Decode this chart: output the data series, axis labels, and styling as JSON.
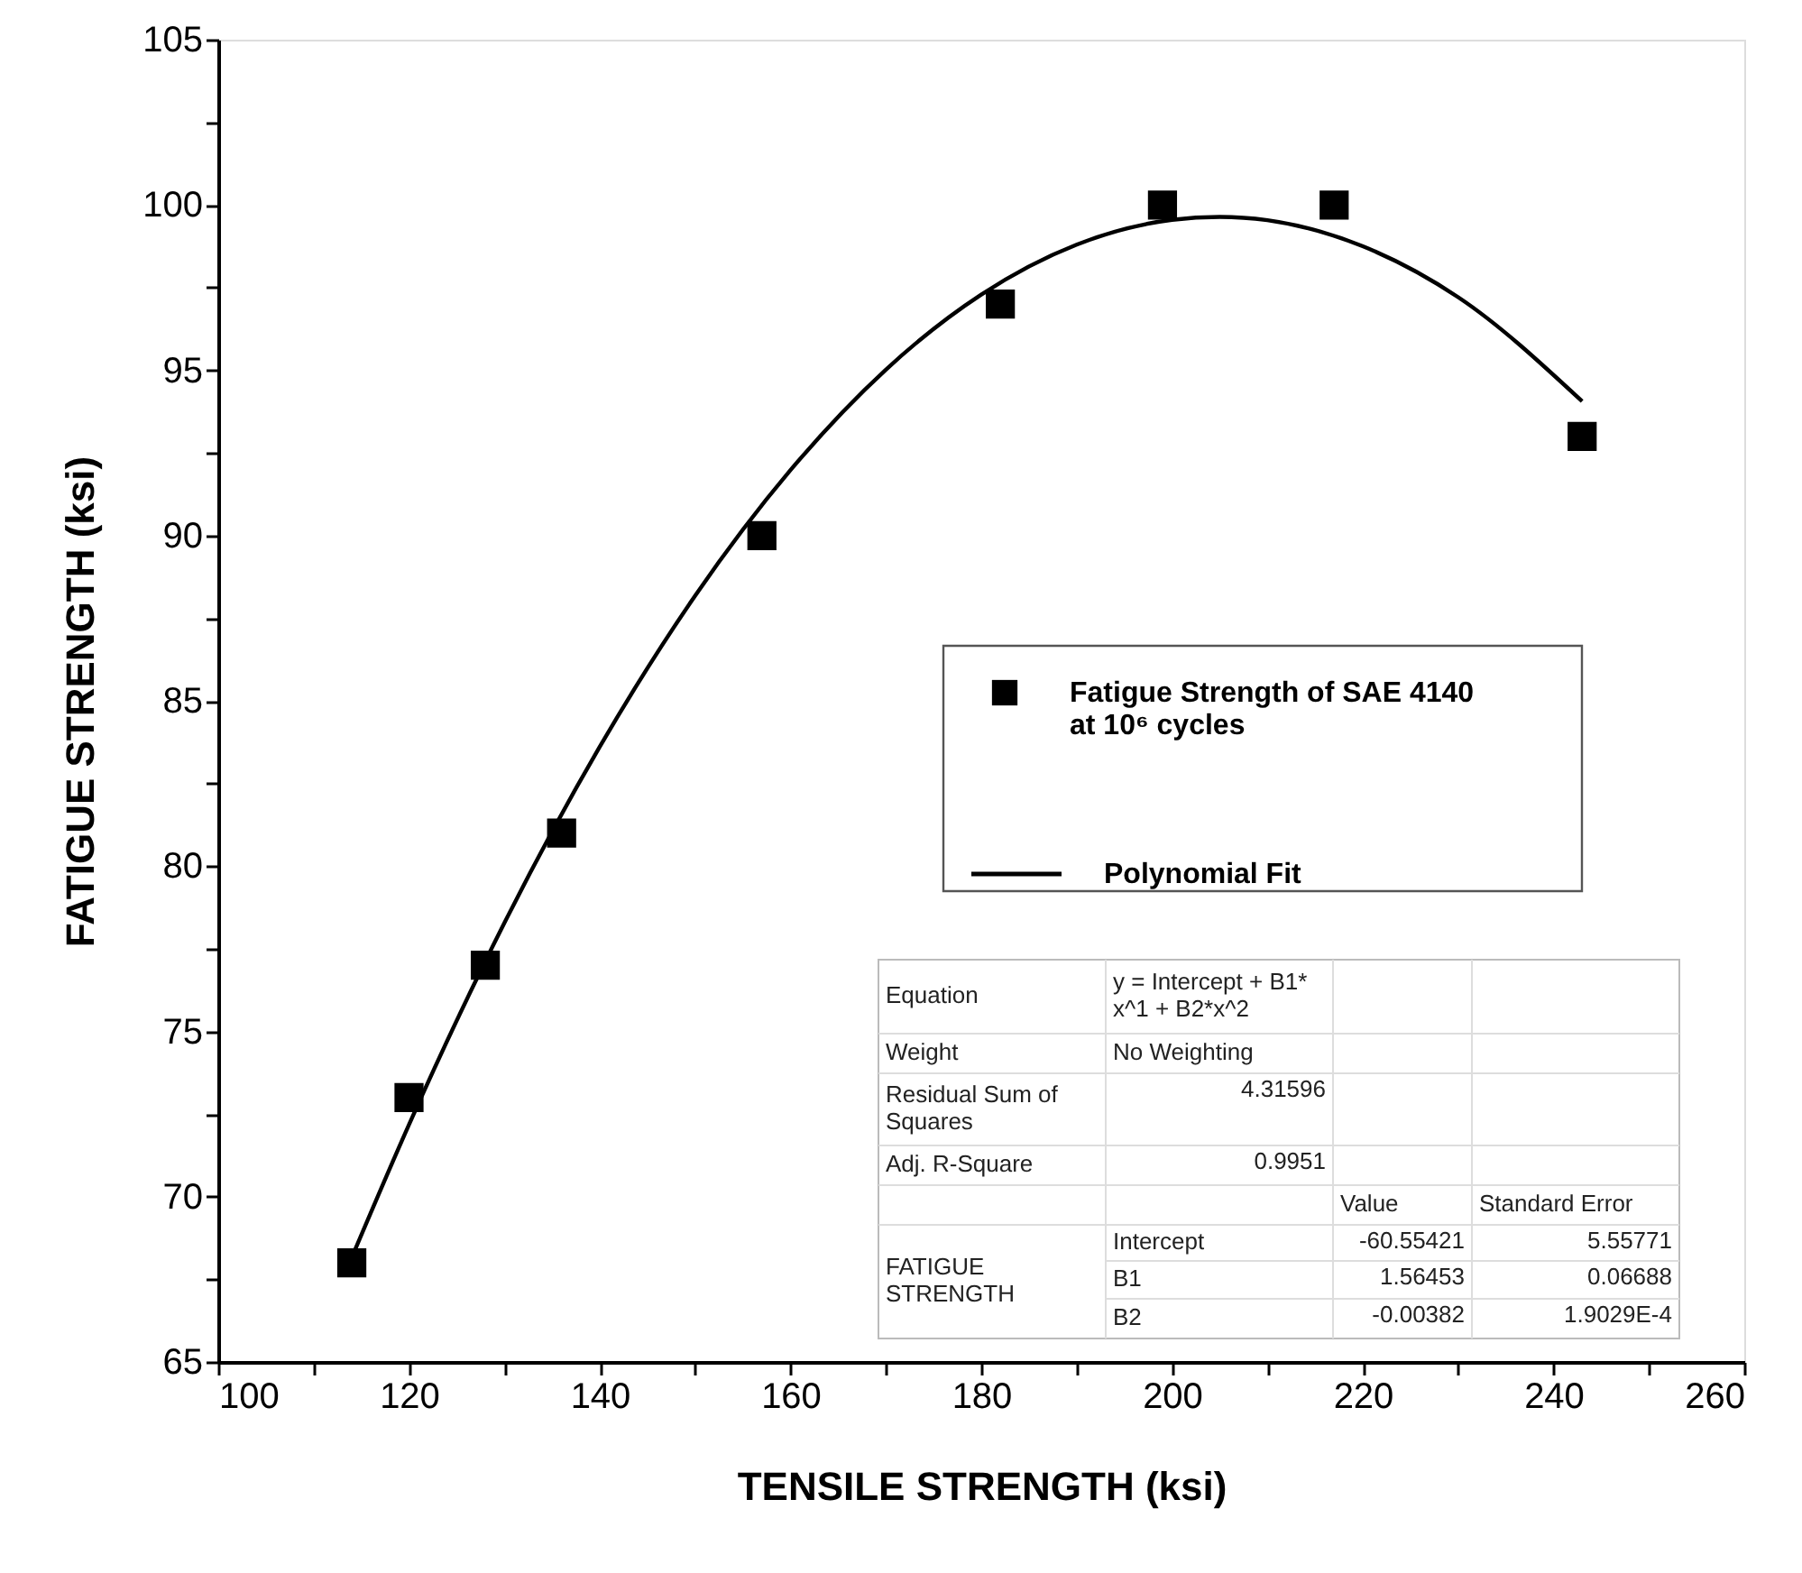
{
  "chart_data": {
    "type": "scatter",
    "xlabel": "TENSILE STRENGTH (ksi)",
    "ylabel": "FATIGUE STRENGTH (ksi)",
    "xlim": [
      100,
      260
    ],
    "ylim": [
      65,
      105
    ],
    "xticks": [
      100,
      {
        "value": 110,
        "label": null
      },
      120,
      {
        "value": 130,
        "label": null
      },
      140,
      {
        "value": 150,
        "label": null
      },
      160,
      {
        "value": 170,
        "label": null
      },
      180,
      {
        "value": 190,
        "label": null
      },
      200,
      {
        "value": 210,
        "label": null
      },
      220,
      {
        "value": 230,
        "label": null
      },
      240,
      {
        "value": 250,
        "label": null
      },
      260
    ],
    "yticks": [
      65,
      {
        "value": 67.5,
        "label": null
      },
      70,
      {
        "value": 72.5,
        "label": null
      },
      75,
      {
        "value": 77.5,
        "label": null
      },
      80,
      {
        "value": 82.5,
        "label": null
      },
      85,
      {
        "value": 87.5,
        "label": null
      },
      90,
      {
        "value": 92.5,
        "label": null
      },
      95,
      {
        "value": 97.5,
        "label": null
      },
      100,
      {
        "value": 102.5,
        "label": null
      },
      105
    ],
    "grid": false,
    "legend": "right",
    "series": [
      {
        "name": "Fatigue Strength of SAE 4140\nat 10⁶ cycles",
        "type": "scatter",
        "marker": "square",
        "color": "#000000",
        "x": [
          114,
          120,
          128,
          136,
          157,
          182,
          199,
          217,
          243
        ],
        "values": [
          68,
          73,
          77,
          81,
          90,
          97,
          100,
          100,
          93
        ]
      },
      {
        "name": "Polynomial Fit",
        "type": "line",
        "line_style": "solid",
        "color": "#000000",
        "x": [
          114,
          120,
          130,
          140,
          150,
          160,
          170,
          180,
          190,
          200,
          205,
          210,
          220,
          230,
          243
        ],
        "values": [
          68.16,
          72.18,
          78.28,
          83.61,
          88.18,
          91.98,
          95.02,
          97.29,
          98.8,
          99.55,
          99.64,
          99.54,
          98.75,
          97.21,
          94.06
        ]
      }
    ],
    "annotations": [
      "Equation",
      "y = Intercept + B1*\nx^1 + B2*x^2",
      "Weight",
      "No Weighting",
      "Residual Sum of\nSquares",
      "4.31596",
      "Adj. R-Square",
      "0.9951",
      "Value",
      "Standard Error",
      "FATIGUE\nSTRENGTH",
      "Intercept",
      "-60.55421",
      "5.55771",
      "B1",
      "1.56453",
      "0.06688",
      "B2",
      "-0.00382",
      "1.9029E-4"
    ]
  }
}
